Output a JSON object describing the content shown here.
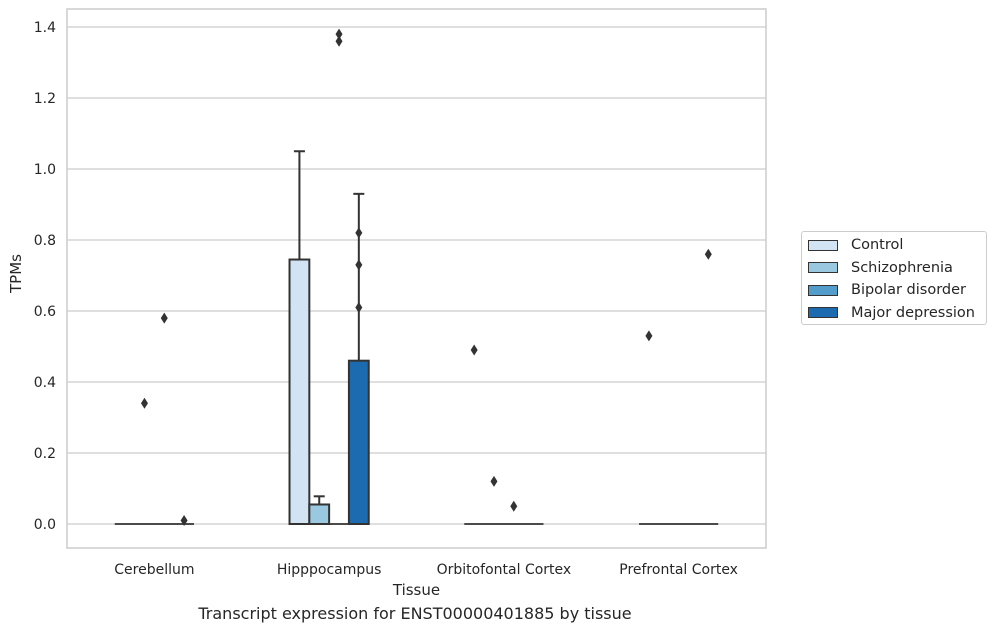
{
  "chart_data": {
    "type": "bar",
    "title": "",
    "caption": "Transcript expression for ENST00000401885 by tissue",
    "xlabel": "Tissue",
    "ylabel": "TPMs",
    "ylim": [
      -0.07,
      1.45
    ],
    "yticks": [
      "0.0",
      "0.2",
      "0.4",
      "0.6",
      "0.8",
      "1.0",
      "1.2",
      "1.4"
    ],
    "grid": "horizontal",
    "legend_position": "right",
    "categories": [
      "Cerebellum",
      "Hipppocampus",
      "Orbitofontal Cortex",
      "Prefrontal Cortex"
    ],
    "series": [
      {
        "name": "Control",
        "color": "#d2e3f3",
        "values": [
          0,
          0.745,
          0,
          0
        ],
        "error_upper": [
          0,
          1.05,
          0,
          0
        ]
      },
      {
        "name": "Schizophrenia",
        "color": "#9ac8e0",
        "values": [
          0,
          0.055,
          0,
          0
        ],
        "error_upper": [
          0,
          0.078,
          0,
          0
        ]
      },
      {
        "name": "Bipolar disorder",
        "color": "#529dcc",
        "values": [
          0,
          0,
          0,
          0
        ],
        "error_upper": [
          0,
          0,
          0,
          0
        ]
      },
      {
        "name": "Major depression",
        "color": "#1c6aaf",
        "values": [
          0,
          0.46,
          0,
          0
        ],
        "error_upper": [
          0,
          0.93,
          0,
          0
        ]
      }
    ],
    "outliers": [
      {
        "category": "Cerebellum",
        "series": "Schizophrenia",
        "values": [
          0.34
        ]
      },
      {
        "category": "Cerebellum",
        "series": "Bipolar disorder",
        "values": [
          0.58
        ]
      },
      {
        "category": "Cerebellum",
        "series": "Major depression",
        "values": [
          0.01
        ]
      },
      {
        "category": "Hipppocampus",
        "series": "Bipolar disorder",
        "values": [
          1.38,
          1.36
        ]
      },
      {
        "category": "Hipppocampus",
        "series": "Major depression",
        "values": [
          0.82,
          0.73,
          0.61
        ]
      },
      {
        "category": "Orbitofontal Cortex",
        "series": "Control",
        "values": [
          0.49
        ]
      },
      {
        "category": "Orbitofontal Cortex",
        "series": "Schizophrenia",
        "values": [
          0.12
        ]
      },
      {
        "category": "Orbitofontal Cortex",
        "series": "Bipolar disorder",
        "values": [
          0.05
        ]
      },
      {
        "category": "Prefrontal Cortex",
        "series": "Control",
        "values": [
          0.53
        ]
      },
      {
        "category": "Prefrontal Cortex",
        "series": "Major depression",
        "values": [
          0.76
        ]
      }
    ]
  }
}
